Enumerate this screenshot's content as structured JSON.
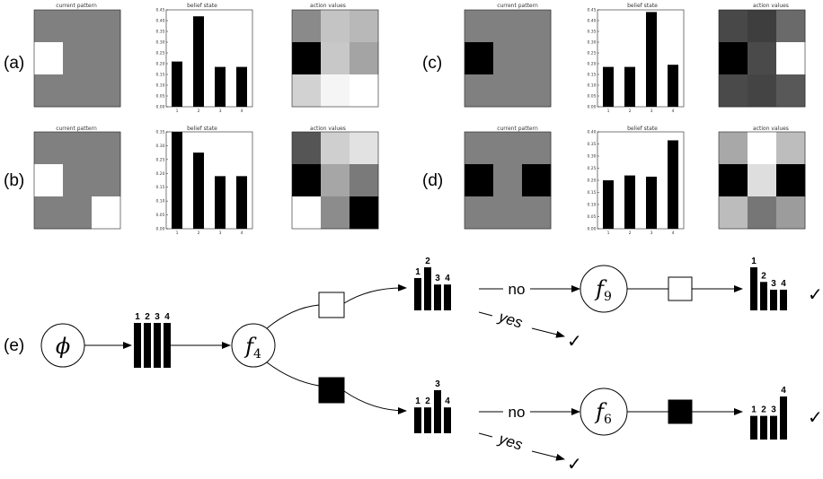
{
  "panels": [
    {
      "label": "(a)",
      "pattern_title": "current pattern",
      "belief_title": "belief state",
      "values_title": "action values",
      "pattern": [
        [
          "g",
          "g",
          "g"
        ],
        [
          "w",
          "g",
          "g"
        ],
        [
          "g",
          "g",
          "g"
        ]
      ],
      "belief": {
        "categories": [
          "1",
          "2",
          "3",
          "4"
        ],
        "values": [
          0.21,
          0.42,
          0.185,
          0.185
        ],
        "yticks": [
          "0.00",
          "0.05",
          "0.10",
          "0.15",
          "0.20",
          "0.25",
          "0.30",
          "0.35",
          "0.40",
          "0.45"
        ],
        "ymax": 0.45
      },
      "action_values": [
        [
          "#8a8a8a",
          "#c4c4c4",
          "#b8b8b8"
        ],
        [
          "#000000",
          "#c8c8c8",
          "#a4a4a4"
        ],
        [
          "#d2d2d2",
          "#f5f5f5",
          "#ffffff"
        ]
      ]
    },
    {
      "label": "(b)",
      "pattern_title": "current pattern",
      "belief_title": "belief state",
      "values_title": "action values",
      "pattern": [
        [
          "g",
          "g",
          "g"
        ],
        [
          "w",
          "g",
          "g"
        ],
        [
          "g",
          "g",
          "w"
        ]
      ],
      "belief": {
        "categories": [
          "1",
          "2",
          "3",
          "4"
        ],
        "values": [
          0.35,
          0.275,
          0.19,
          0.19
        ],
        "yticks": [
          "0.00",
          "0.05",
          "0.10",
          "0.15",
          "0.20",
          "0.25",
          "0.30",
          "0.35"
        ],
        "ymax": 0.35
      },
      "action_values": [
        [
          "#555555",
          "#cfcfcf",
          "#e2e2e2"
        ],
        [
          "#000000",
          "#a6a6a6",
          "#7a7a7a"
        ],
        [
          "#ffffff",
          "#8c8c8c",
          "#000000"
        ]
      ]
    },
    {
      "label": "(c)",
      "pattern_title": "current pattern",
      "belief_title": "belief state",
      "values_title": "action values",
      "pattern": [
        [
          "g",
          "g",
          "g"
        ],
        [
          "k",
          "g",
          "g"
        ],
        [
          "g",
          "g",
          "g"
        ]
      ],
      "belief": {
        "categories": [
          "1",
          "2",
          "3",
          "4"
        ],
        "values": [
          0.185,
          0.185,
          0.44,
          0.195
        ],
        "yticks": [
          "0.00",
          "0.05",
          "0.10",
          "0.15",
          "0.20",
          "0.25",
          "0.30",
          "0.35",
          "0.40",
          "0.45"
        ],
        "ymax": 0.45
      },
      "action_values": [
        [
          "#484848",
          "#3e3e3e",
          "#6a6a6a"
        ],
        [
          "#000000",
          "#4a4a4a",
          "#ffffff"
        ],
        [
          "#4a4a4a",
          "#444444",
          "#585858"
        ]
      ]
    },
    {
      "label": "(d)",
      "pattern_title": "current pattern",
      "belief_title": "belief state",
      "values_title": "action values",
      "pattern": [
        [
          "g",
          "g",
          "g"
        ],
        [
          "k",
          "g",
          "k"
        ],
        [
          "g",
          "g",
          "g"
        ]
      ],
      "belief": {
        "categories": [
          "1",
          "2",
          "3",
          "4"
        ],
        "values": [
          0.2,
          0.22,
          0.215,
          0.365
        ],
        "yticks": [
          "0.00",
          "0.05",
          "0.10",
          "0.15",
          "0.20",
          "0.25",
          "0.30",
          "0.35",
          "0.40"
        ],
        "ymax": 0.4
      },
      "action_values": [
        [
          "#a8a8a8",
          "#ffffff",
          "#bdbdbd"
        ],
        [
          "#000000",
          "#dedede",
          "#000000"
        ],
        [
          "#bcbcbc",
          "#767676",
          "#9c9c9c"
        ]
      ]
    }
  ],
  "colors": {
    "gray": "#808080",
    "white": "#ffffff",
    "black": "#000000"
  },
  "tree": {
    "label": "(e)",
    "root": {
      "symbol": "ϕ"
    },
    "root_bars": {
      "labels": [
        "1",
        "2",
        "3",
        "4"
      ],
      "heights": [
        1,
        1,
        1,
        1
      ]
    },
    "node_f4": {
      "symbol": "f",
      "sub": "4"
    },
    "upper": {
      "bars": {
        "labels": [
          "1",
          "2",
          "3",
          "4"
        ],
        "heights": [
          0.75,
          1.0,
          0.6,
          0.6
        ]
      },
      "no_label": "no",
      "yes_label": "yes",
      "check": "✓",
      "node": {
        "symbol": "f",
        "sub": "9"
      },
      "final_bars": {
        "labels": [
          "1",
          "2",
          "3",
          "4"
        ],
        "heights": [
          1.0,
          0.66,
          0.48,
          0.48
        ]
      },
      "final_check": "✓"
    },
    "lower": {
      "bars": {
        "labels": [
          "1",
          "2",
          "3",
          "4"
        ],
        "heights": [
          0.6,
          0.6,
          1.0,
          0.6
        ]
      },
      "no_label": "no",
      "yes_label": "yes",
      "check": "✓",
      "node": {
        "symbol": "f",
        "sub": "6"
      },
      "final_bars": {
        "labels": [
          "1",
          "2",
          "3",
          "4"
        ],
        "heights": [
          0.55,
          0.55,
          0.55,
          1.0
        ]
      },
      "final_check": "✓"
    }
  }
}
